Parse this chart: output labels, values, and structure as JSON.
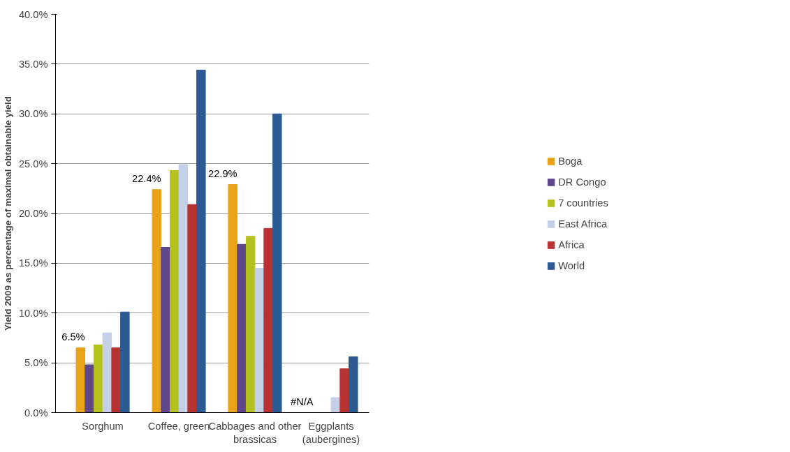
{
  "chart_data": {
    "type": "bar",
    "ylabel": "Yield 2009 as percentage of maximal obtainable yield",
    "categories": [
      "Sorghum",
      "Coffee, green",
      "Cabbages and other brassicas",
      "Eggplants (aubergines)"
    ],
    "series": [
      {
        "name": "Boga",
        "color": "#e8a317",
        "values": [
          6.5,
          22.4,
          22.9,
          null
        ],
        "value_labels": [
          "6.5%",
          "22.4%",
          "22.9%",
          "#N/A"
        ]
      },
      {
        "name": "DR Congo",
        "color": "#60468a",
        "values": [
          4.8,
          16.6,
          16.9,
          null
        ]
      },
      {
        "name": "7 countries",
        "color": "#b5c11c",
        "values": [
          6.8,
          24.3,
          17.7,
          null
        ]
      },
      {
        "name": "East Africa",
        "color": "#c3d0e8",
        "values": [
          8.0,
          24.9,
          14.5,
          1.5
        ]
      },
      {
        "name": "Africa",
        "color": "#b83232",
        "values": [
          6.5,
          20.9,
          18.5,
          4.4
        ]
      },
      {
        "name": "World",
        "color": "#2c5b94",
        "values": [
          10.1,
          34.4,
          30.0,
          5.6
        ]
      }
    ],
    "ylim": [
      0,
      40
    ],
    "yticks": [
      {
        "value": 0,
        "label": "0.0%"
      },
      {
        "value": 5,
        "label": "5.0%"
      },
      {
        "value": 10,
        "label": "10.0%"
      },
      {
        "value": 15,
        "label": "15.0%"
      },
      {
        "value": 20,
        "label": "20.0%"
      },
      {
        "value": 25,
        "label": "25.0%"
      },
      {
        "value": 30,
        "label": "30.0%"
      },
      {
        "value": 35,
        "label": "35.0%"
      },
      {
        "value": 40,
        "label": "40.0%"
      }
    ],
    "grid": "y",
    "legend": "right"
  }
}
